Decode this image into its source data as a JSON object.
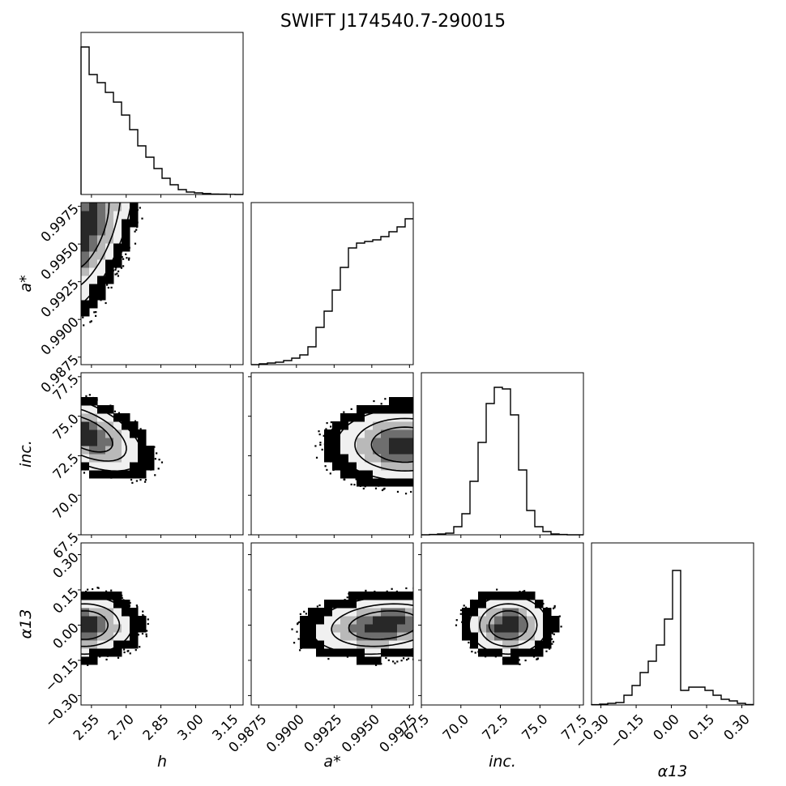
{
  "chart_data": {
    "type": "corner",
    "title": "SWIFT J174540.7-290015",
    "parameters": [
      {
        "key": "h",
        "label": "h",
        "range": [
          2.505,
          3.205
        ],
        "ticks": [
          2.55,
          2.7,
          2.85,
          3.0,
          3.15
        ],
        "tick_labels": [
          "2.55",
          "2.70",
          "2.85",
          "3.00",
          "3.15"
        ]
      },
      {
        "key": "a",
        "label": "a*",
        "range": [
          0.987,
          0.99775
        ],
        "ticks": [
          0.9875,
          0.99,
          0.9925,
          0.995,
          0.9975
        ],
        "tick_labels": [
          "0.9875",
          "0.9900",
          "0.9925",
          "0.9950",
          "0.9975"
        ]
      },
      {
        "key": "inc",
        "label": "inc.",
        "range": [
          67.5,
          77.75
        ],
        "ticks": [
          67.5,
          70.0,
          72.5,
          75.0,
          77.5
        ],
        "tick_labels": [
          "67.5",
          "70.0",
          "72.5",
          "75.0",
          "77.5"
        ]
      },
      {
        "key": "alpha",
        "label": "α13",
        "range": [
          -0.34,
          0.35
        ],
        "ticks": [
          -0.3,
          -0.15,
          0.0,
          0.15,
          0.3
        ],
        "tick_labels": [
          "−0.30",
          "−0.15",
          "0.00",
          "0.15",
          "0.30"
        ]
      }
    ],
    "histograms": [
      {
        "param": "h",
        "edges": [
          2.505,
          2.54,
          2.575,
          2.61,
          2.645,
          2.68,
          2.715,
          2.75,
          2.785,
          2.82,
          2.855,
          2.89,
          2.925,
          2.96,
          2.995,
          3.03,
          3.065,
          3.1,
          3.135,
          3.17,
          3.205
        ],
        "counts": [
          0.91,
          0.74,
          0.69,
          0.63,
          0.57,
          0.49,
          0.4,
          0.3,
          0.23,
          0.16,
          0.1,
          0.06,
          0.03,
          0.015,
          0.01,
          0.006,
          0.003,
          0.002,
          0.001,
          0.0
        ]
      },
      {
        "param": "a",
        "edges": [
          0.987,
          0.99047,
          0.99395,
          0.99742,
          0.9975
        ],
        "counts": [],
        "steps": [
          0.0,
          0.005,
          0.01,
          0.015,
          0.025,
          0.04,
          0.06,
          0.11,
          0.23,
          0.33,
          0.46,
          0.6,
          0.72,
          0.75,
          0.76,
          0.77,
          0.79,
          0.82,
          0.85,
          0.9
        ]
      },
      {
        "param": "inc",
        "steps": [
          0.0,
          0.002,
          0.005,
          0.01,
          0.05,
          0.13,
          0.33,
          0.57,
          0.81,
          0.91,
          0.9,
          0.74,
          0.4,
          0.15,
          0.05,
          0.02,
          0.005,
          0.002,
          0.0,
          0.0
        ]
      },
      {
        "param": "alpha",
        "steps": [
          0.002,
          0.005,
          0.01,
          0.015,
          0.06,
          0.12,
          0.2,
          0.27,
          0.37,
          0.53,
          0.83,
          0.09,
          0.11,
          0.11,
          0.09,
          0.06,
          0.035,
          0.025,
          0.01,
          0.003
        ]
      }
    ],
    "joint": [
      {
        "x": "h",
        "y": "a",
        "peak": [
          2.525,
          0.9961
        ],
        "spread": [
          0.1,
          0.0028
        ],
        "corr": 0.55,
        "kind": "edge"
      },
      {
        "x": "h",
        "y": "inc",
        "peak": [
          2.52,
          73.9
        ],
        "spread": [
          0.12,
          1.15
        ],
        "corr": -0.55,
        "kind": "edge"
      },
      {
        "x": "a",
        "y": "inc",
        "peak": [
          0.9972,
          73.2
        ],
        "spread": [
          0.0022,
          1.1
        ],
        "corr": 0.0,
        "kind": "edge"
      },
      {
        "x": "h",
        "y": "alpha",
        "peak": [
          2.52,
          0.0
        ],
        "spread": [
          0.1,
          0.06
        ],
        "corr": 0.0,
        "kind": "edge"
      },
      {
        "x": "a",
        "y": "alpha",
        "peak": [
          0.9958,
          0.0
        ],
        "spread": [
          0.0023,
          0.06
        ],
        "corr": 0.2,
        "kind": "inner"
      },
      {
        "x": "inc",
        "y": "alpha",
        "peak": [
          73.0,
          0.0
        ],
        "spread": [
          1.2,
          0.06
        ],
        "corr": 0.0,
        "kind": "inner"
      }
    ]
  }
}
